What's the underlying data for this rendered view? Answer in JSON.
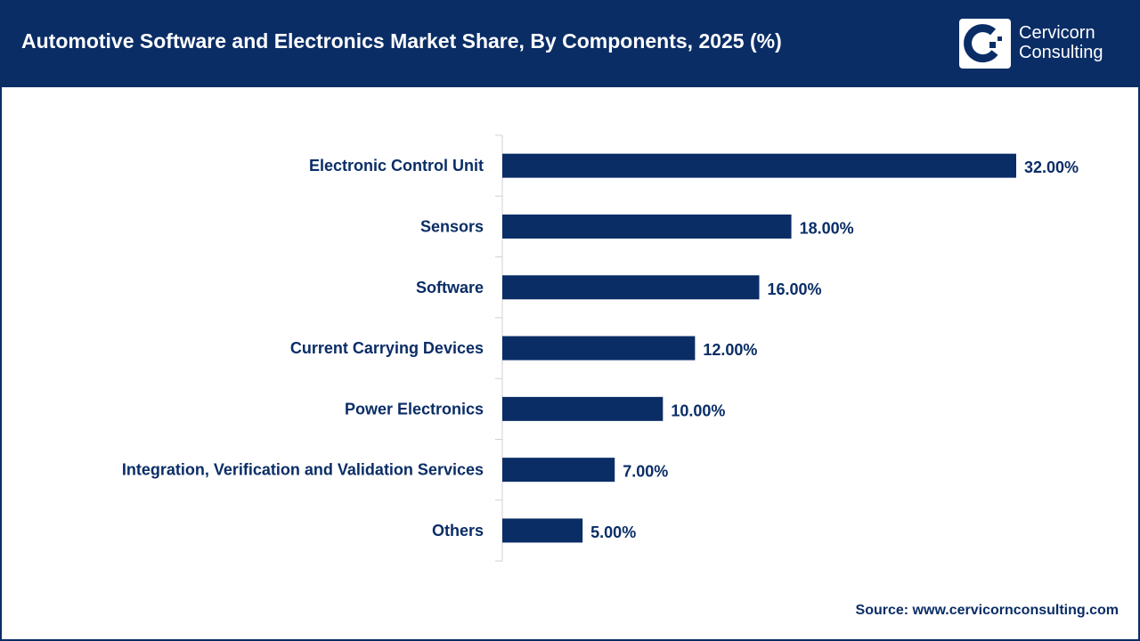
{
  "header": {
    "title": "Automotive Software and Electronics Market Share, By Components, 2025 (%)"
  },
  "logo": {
    "line1": "Cervicorn",
    "line2": "Consulting"
  },
  "source": "Source: www.cervicornconsulting.com",
  "colors": {
    "bar": "#0a2d66",
    "header": "#0a2d66",
    "axis": "#d0d0d0"
  },
  "chart_data": {
    "type": "bar",
    "orientation": "horizontal",
    "title": "Automotive Software and Electronics Market Share, By Components, 2025 (%)",
    "categories": [
      "Electronic Control Unit",
      "Sensors",
      "Software",
      "Current Carrying Devices",
      "Power Electronics",
      "Integration, Verification and Validation Services",
      "Others"
    ],
    "values": [
      32,
      18,
      16,
      12,
      10,
      7,
      5
    ],
    "labels": [
      "32.00%",
      "18.00%",
      "16.00%",
      "12.00%",
      "10.00%",
      "7.00%",
      "5.00%"
    ],
    "xlim": [
      0,
      32
    ],
    "grid": false
  }
}
